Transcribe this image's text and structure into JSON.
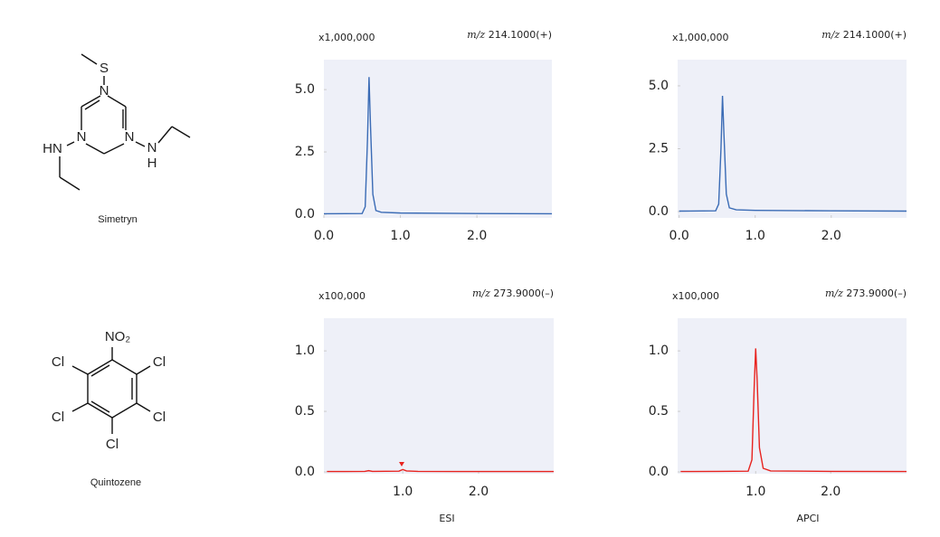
{
  "compounds": [
    {
      "name": "Simetryn",
      "atoms": [
        "S",
        "N",
        "N",
        "N",
        "HN",
        "N",
        "H"
      ]
    },
    {
      "name": "Quintozene",
      "atoms": [
        "NO₂",
        "Cl",
        "Cl",
        "Cl",
        "Cl",
        "Cl"
      ]
    }
  ],
  "columns": [
    "ESI",
    "APCI"
  ],
  "chart_data": [
    {
      "type": "line",
      "multiplier": "x1,000,000",
      "mz_prefix": "m/z",
      "mz_value": "214.1000(+)",
      "color": "#3a6bb5",
      "x": [
        0,
        0.5,
        0.54,
        0.57,
        0.59,
        0.61,
        0.64,
        0.68,
        0.75,
        1.0,
        2.0,
        2.98
      ],
      "values": [
        0.02,
        0.03,
        0.3,
        3.0,
        5.5,
        3.5,
        0.8,
        0.15,
        0.08,
        0.05,
        0.03,
        0.02
      ],
      "xlim": [
        0,
        2.98
      ],
      "ylim": [
        -0.145,
        6.2
      ],
      "xticks": [
        {
          "value": 0,
          "label": "0.0"
        },
        {
          "value": 1,
          "label": "1.0"
        },
        {
          "value": 2,
          "label": "2.0"
        }
      ],
      "yticks": [
        {
          "value": 0,
          "label": "0.0"
        },
        {
          "value": 2.5,
          "label": "2.5"
        },
        {
          "value": 5,
          "label": "5.0"
        }
      ]
    },
    {
      "type": "line",
      "multiplier": "x1,000,000",
      "mz_prefix": "m/z",
      "mz_value": "214.1000(+)",
      "color": "#3a6bb5",
      "x": [
        0,
        0.48,
        0.52,
        0.55,
        0.57,
        0.59,
        0.62,
        0.66,
        0.75,
        1.0,
        2.0,
        2.99
      ],
      "values": [
        0.02,
        0.03,
        0.3,
        2.5,
        4.6,
        3.0,
        0.7,
        0.15,
        0.07,
        0.05,
        0.03,
        0.02
      ],
      "xlim": [
        -0.02,
        2.99
      ],
      "ylim": [
        -0.25,
        6.04
      ],
      "xticks": [
        {
          "value": 0,
          "label": "0.0"
        },
        {
          "value": 1,
          "label": "1.0"
        },
        {
          "value": 2,
          "label": "2.0"
        }
      ],
      "yticks": [
        {
          "value": 0,
          "label": "0.0"
        },
        {
          "value": 2.5,
          "label": "2.5"
        },
        {
          "value": 5,
          "label": "5.0"
        }
      ]
    },
    {
      "type": "line",
      "multiplier": "x100,000",
      "mz_prefix": "m/z",
      "mz_value": "273.9000(–)",
      "color": "#e8231f",
      "x": [
        0,
        0.5,
        0.55,
        0.6,
        0.95,
        1.0,
        1.05,
        1.2,
        2.0,
        2.99
      ],
      "values": [
        0.003,
        0.004,
        0.01,
        0.004,
        0.006,
        0.02,
        0.008,
        0.004,
        0.003,
        0.003
      ],
      "xlim": [
        -0.04,
        2.99
      ],
      "ylim": [
        -0.015,
        1.27
      ],
      "xticks": [
        {
          "value": 1,
          "label": "1.0"
        },
        {
          "value": 2,
          "label": "2.0"
        }
      ],
      "yticks": [
        {
          "value": 0,
          "label": "0.0"
        },
        {
          "value": 0.5,
          "label": "0.5"
        },
        {
          "value": 1,
          "label": "1.0"
        }
      ]
    },
    {
      "type": "line",
      "multiplier": "x100,000",
      "mz_prefix": "m/z",
      "mz_value": "273.9000(–)",
      "color": "#e8231f",
      "x": [
        0,
        0.5,
        0.9,
        0.95,
        0.98,
        1.0,
        1.02,
        1.05,
        1.1,
        1.2,
        2.0,
        3.01
      ],
      "values": [
        0.003,
        0.004,
        0.006,
        0.1,
        0.7,
        1.02,
        0.75,
        0.2,
        0.03,
        0.008,
        0.004,
        0.003
      ],
      "xlim": [
        -0.04,
        3.01
      ],
      "ylim": [
        -0.015,
        1.27
      ],
      "xticks": [
        {
          "value": 1,
          "label": "1.0"
        },
        {
          "value": 2,
          "label": "2.0"
        }
      ],
      "yticks": [
        {
          "value": 0,
          "label": "0.0"
        },
        {
          "value": 0.5,
          "label": "0.5"
        },
        {
          "value": 1,
          "label": "1.0"
        }
      ]
    }
  ]
}
